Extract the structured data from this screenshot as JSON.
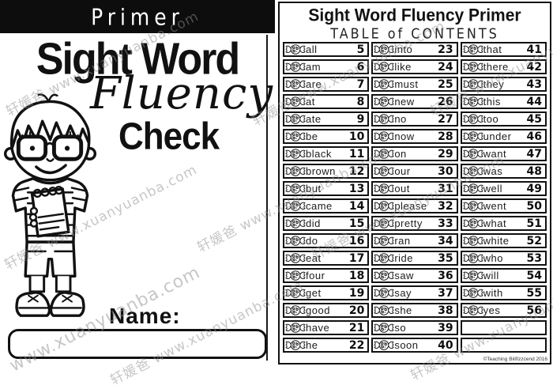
{
  "watermark": {
    "full": "轩媛爸 www.xuanyuanba.com",
    "url": "www.xuanyuanba.com"
  },
  "left_page": {
    "banner": "Primer",
    "title_line1": "Sight Word",
    "title_line2": "Fluency",
    "title_line3": "Check",
    "illustration": "boy-with-glasses-holding-spiral-notebook",
    "name_label": "Name:"
  },
  "right_page": {
    "title": "Sight Word Fluency Primer",
    "subtitle": "TABLE of CONTENTS",
    "copyright": "©Teaching Biilfizzcend 2016",
    "icons": {
      "row_marker": "candy-icon"
    },
    "toc": {
      "columns": [
        {
          "entries": [
            {
              "word": "all",
              "page": "5"
            },
            {
              "word": "am",
              "page": "6"
            },
            {
              "word": "are",
              "page": "7"
            },
            {
              "word": "at",
              "page": "8"
            },
            {
              "word": "ate",
              "page": "9"
            },
            {
              "word": "be",
              "page": "10"
            },
            {
              "word": "black",
              "page": "11"
            },
            {
              "word": "brown",
              "page": "12"
            },
            {
              "word": "but",
              "page": "13"
            },
            {
              "word": "came",
              "page": "14"
            },
            {
              "word": "did",
              "page": "15"
            },
            {
              "word": "do",
              "page": "16"
            },
            {
              "word": "eat",
              "page": "17"
            },
            {
              "word": "four",
              "page": "18"
            },
            {
              "word": "get",
              "page": "19"
            },
            {
              "word": "good",
              "page": "20"
            },
            {
              "word": "have",
              "page": "21"
            },
            {
              "word": "he",
              "page": "22"
            }
          ]
        },
        {
          "entries": [
            {
              "word": "into",
              "page": "23"
            },
            {
              "word": "like",
              "page": "24"
            },
            {
              "word": "must",
              "page": "25"
            },
            {
              "word": "new",
              "page": "26"
            },
            {
              "word": "no",
              "page": "27"
            },
            {
              "word": "now",
              "page": "28"
            },
            {
              "word": "on",
              "page": "29"
            },
            {
              "word": "our",
              "page": "30"
            },
            {
              "word": "out",
              "page": "31"
            },
            {
              "word": "please",
              "page": "32"
            },
            {
              "word": "pretty",
              "page": "33"
            },
            {
              "word": "ran",
              "page": "34"
            },
            {
              "word": "ride",
              "page": "35"
            },
            {
              "word": "saw",
              "page": "36"
            },
            {
              "word": "say",
              "page": "37"
            },
            {
              "word": "she",
              "page": "38"
            },
            {
              "word": "so",
              "page": "39"
            },
            {
              "word": "soon",
              "page": "40"
            }
          ]
        },
        {
          "entries": [
            {
              "word": "that",
              "page": "41"
            },
            {
              "word": "there",
              "page": "42"
            },
            {
              "word": "they",
              "page": "43"
            },
            {
              "word": "this",
              "page": "44"
            },
            {
              "word": "too",
              "page": "45"
            },
            {
              "word": "under",
              "page": "46"
            },
            {
              "word": "want",
              "page": "47"
            },
            {
              "word": "was",
              "page": "48"
            },
            {
              "word": "well",
              "page": "49"
            },
            {
              "word": "went",
              "page": "50"
            },
            {
              "word": "what",
              "page": "51"
            },
            {
              "word": "white",
              "page": "52"
            },
            {
              "word": "who",
              "page": "53"
            },
            {
              "word": "will",
              "page": "54"
            },
            {
              "word": "with",
              "page": "55"
            },
            {
              "word": "yes",
              "page": "56"
            },
            {
              "word": "",
              "page": ""
            },
            {
              "word": "",
              "page": ""
            }
          ]
        }
      ]
    }
  }
}
